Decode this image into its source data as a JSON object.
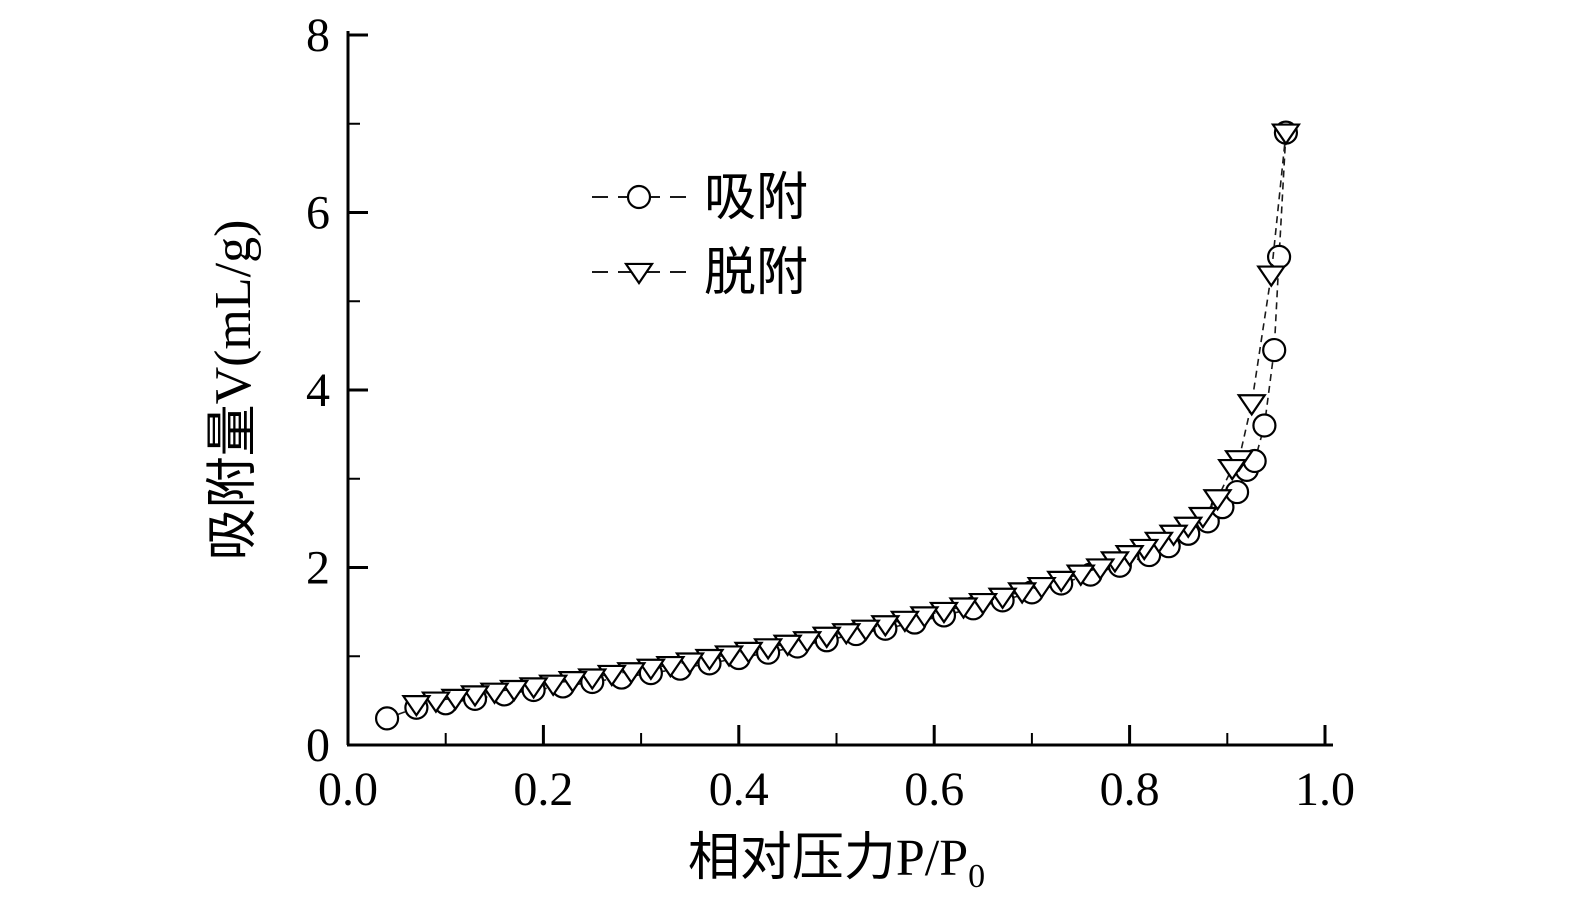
{
  "figure": {
    "background": "#ffffff",
    "axis_color": "#000000",
    "line_color": "#1a1a1a"
  },
  "chart_data": {
    "type": "line",
    "title": "",
    "xlabel": "相对压力P/P₀",
    "xlabel_main": "相对压力P/P",
    "xlabel_sub": "0",
    "ylabel": "吸附量V(mL/g)",
    "xlim": [
      0.0,
      1.0
    ],
    "ylim": [
      0,
      8
    ],
    "xticks": [
      0.0,
      0.2,
      0.4,
      0.6,
      0.8,
      1.0
    ],
    "xtick_labels": [
      "0.0",
      "0.2",
      "0.4",
      "0.6",
      "0.8",
      "1.0"
    ],
    "yticks": [
      0,
      2,
      4,
      6,
      8
    ],
    "ytick_labels": [
      "0",
      "2",
      "4",
      "6",
      "8"
    ],
    "minor_xticks": [
      0.1,
      0.3,
      0.5,
      0.7,
      0.9
    ],
    "minor_yticks": [
      1,
      3,
      5,
      7
    ],
    "grid": false,
    "legend_position": "upper-center-inside",
    "series": [
      {
        "name": "吸附",
        "marker": "circle",
        "x": [
          0.04,
          0.07,
          0.1,
          0.13,
          0.16,
          0.19,
          0.22,
          0.25,
          0.28,
          0.31,
          0.34,
          0.37,
          0.4,
          0.43,
          0.46,
          0.49,
          0.52,
          0.55,
          0.58,
          0.61,
          0.64,
          0.67,
          0.7,
          0.73,
          0.76,
          0.79,
          0.82,
          0.84,
          0.86,
          0.88,
          0.895,
          0.91,
          0.92,
          0.928,
          0.938,
          0.948,
          0.953,
          0.96
        ],
        "y": [
          0.3,
          0.42,
          0.47,
          0.52,
          0.57,
          0.62,
          0.66,
          0.71,
          0.76,
          0.81,
          0.86,
          0.92,
          0.98,
          1.04,
          1.11,
          1.18,
          1.25,
          1.31,
          1.38,
          1.46,
          1.54,
          1.63,
          1.72,
          1.82,
          1.92,
          2.02,
          2.14,
          2.24,
          2.38,
          2.52,
          2.68,
          2.85,
          3.1,
          3.2,
          3.6,
          4.45,
          5.5,
          6.9
        ]
      },
      {
        "name": "脱附",
        "marker": "triangle-down",
        "x": [
          0.96,
          0.945,
          0.925,
          0.912,
          0.905,
          0.89,
          0.875,
          0.86,
          0.845,
          0.83,
          0.815,
          0.8,
          0.785,
          0.77,
          0.75,
          0.73,
          0.71,
          0.69,
          0.67,
          0.65,
          0.63,
          0.61,
          0.59,
          0.57,
          0.55,
          0.53,
          0.51,
          0.49,
          0.47,
          0.45,
          0.43,
          0.41,
          0.39,
          0.37,
          0.35,
          0.33,
          0.31,
          0.29,
          0.27,
          0.25,
          0.23,
          0.21,
          0.19,
          0.17,
          0.15,
          0.13,
          0.11,
          0.09,
          0.07
        ],
        "y": [
          6.9,
          5.3,
          3.85,
          3.22,
          3.12,
          2.78,
          2.58,
          2.47,
          2.38,
          2.3,
          2.22,
          2.15,
          2.08,
          2.0,
          1.93,
          1.86,
          1.79,
          1.73,
          1.67,
          1.61,
          1.56,
          1.51,
          1.46,
          1.41,
          1.36,
          1.31,
          1.27,
          1.23,
          1.18,
          1.14,
          1.1,
          1.06,
          1.02,
          0.98,
          0.94,
          0.9,
          0.87,
          0.83,
          0.8,
          0.76,
          0.73,
          0.69,
          0.66,
          0.63,
          0.6,
          0.57,
          0.53,
          0.5,
          0.46
        ]
      }
    ]
  }
}
